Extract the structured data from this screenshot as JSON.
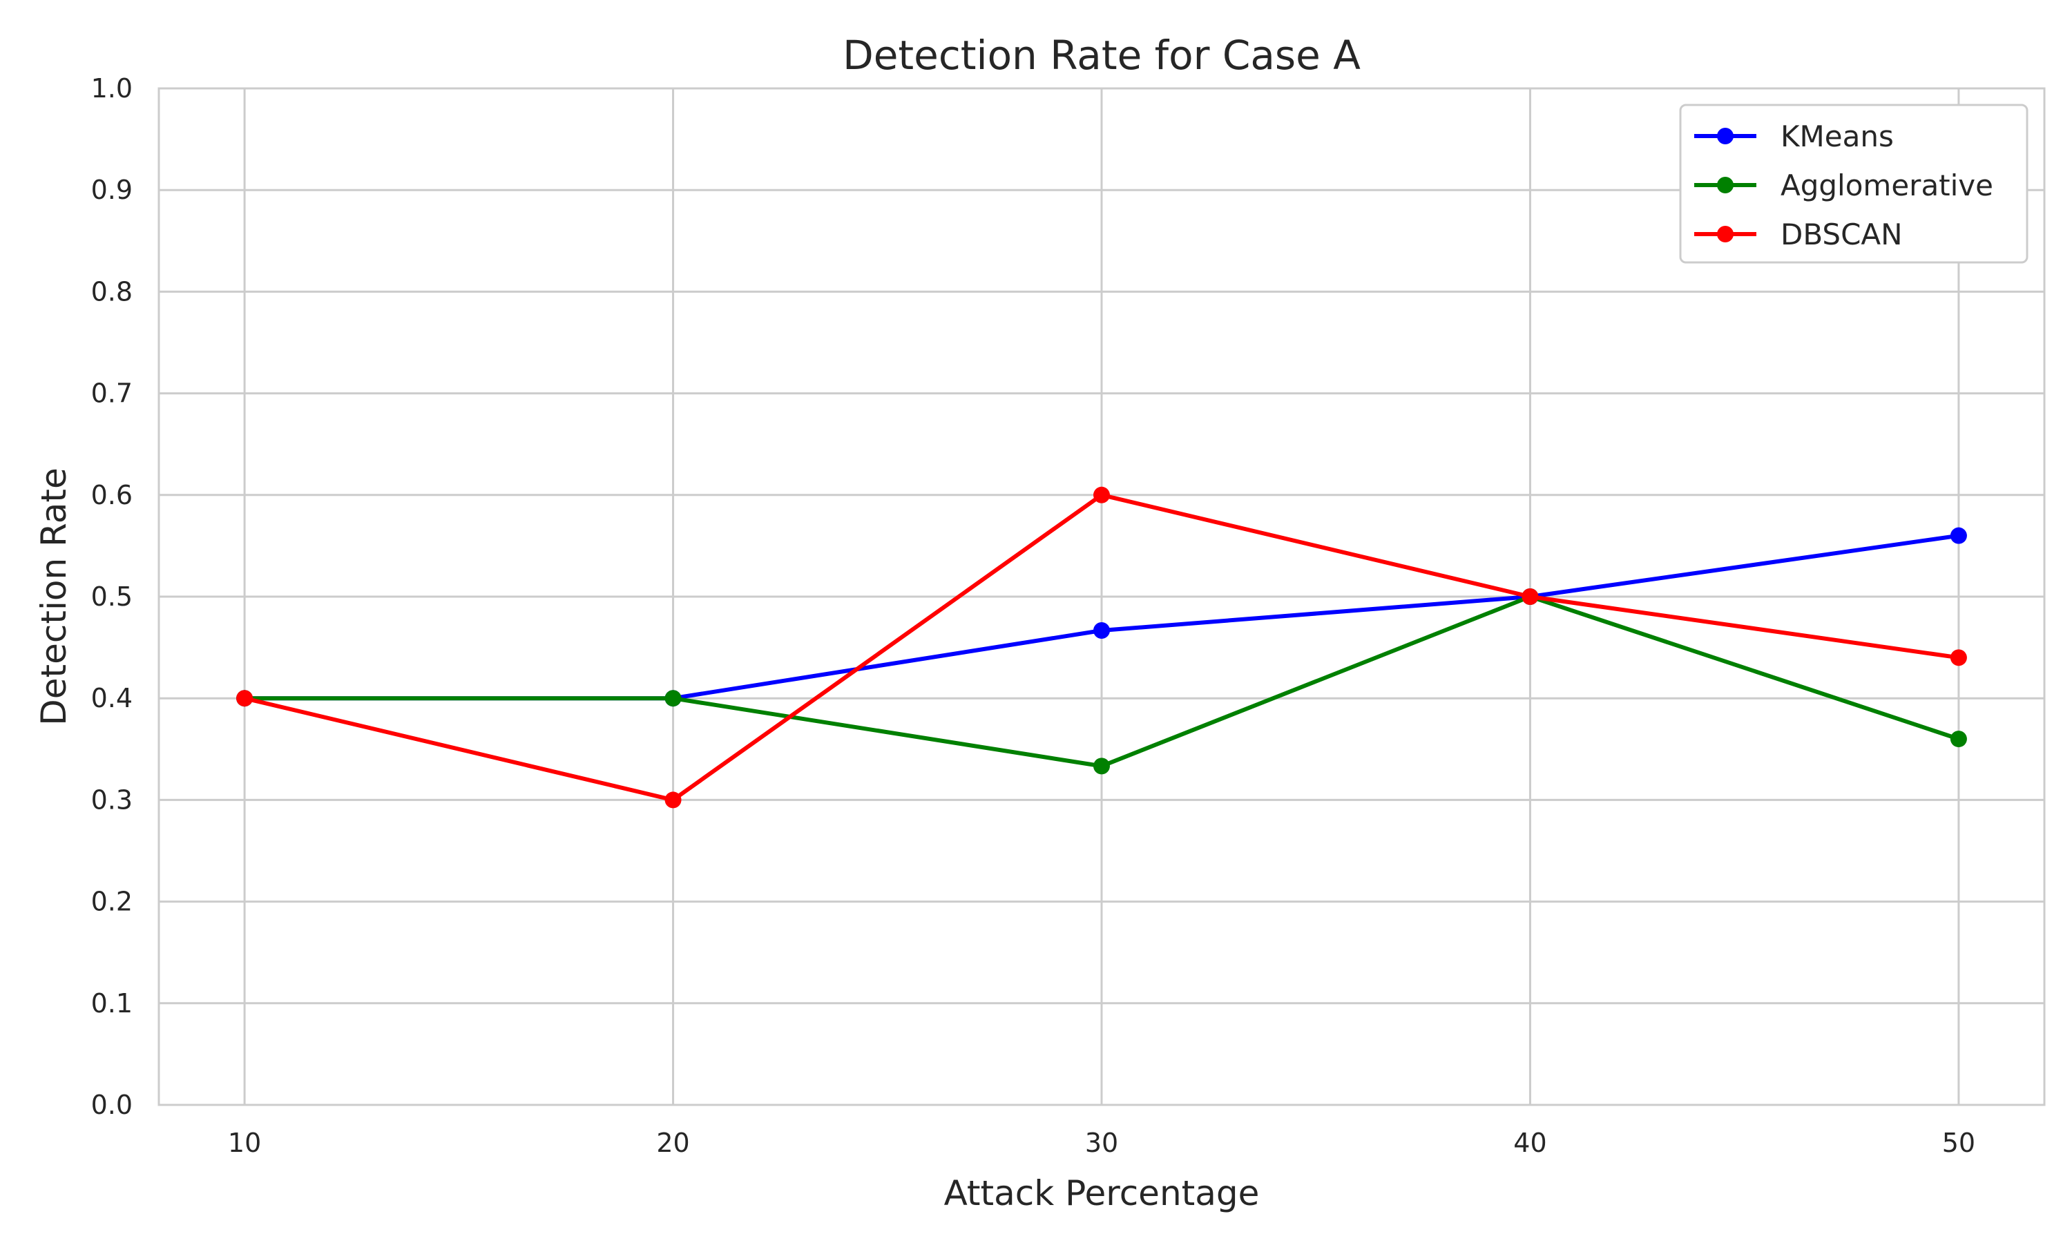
{
  "chart_data": {
    "type": "line",
    "title": "Detection Rate for Case A",
    "xlabel": "Attack Percentage",
    "ylabel": "Detection Rate",
    "x": [
      10,
      20,
      30,
      40,
      50
    ],
    "xlim": [
      8,
      52
    ],
    "ylim": [
      0.0,
      1.0
    ],
    "x_ticks": [
      "10",
      "20",
      "30",
      "40",
      "50"
    ],
    "y_ticks": [
      "0.0",
      "0.1",
      "0.2",
      "0.3",
      "0.4",
      "0.5",
      "0.6",
      "0.7",
      "0.8",
      "0.9",
      "1.0"
    ],
    "grid": true,
    "legend_position": "top-right",
    "series": [
      {
        "name": "KMeans",
        "color": "#0000ff",
        "marker": "circle",
        "values": [
          0.4,
          0.4,
          0.4667,
          0.5,
          0.56
        ]
      },
      {
        "name": "Agglomerative",
        "color": "#008000",
        "marker": "circle",
        "values": [
          0.4,
          0.4,
          0.3333,
          0.5,
          0.36
        ]
      },
      {
        "name": "DBSCAN",
        "color": "#ff0000",
        "marker": "circle",
        "values": [
          0.4,
          0.3,
          0.6,
          0.5,
          0.44
        ]
      }
    ]
  }
}
